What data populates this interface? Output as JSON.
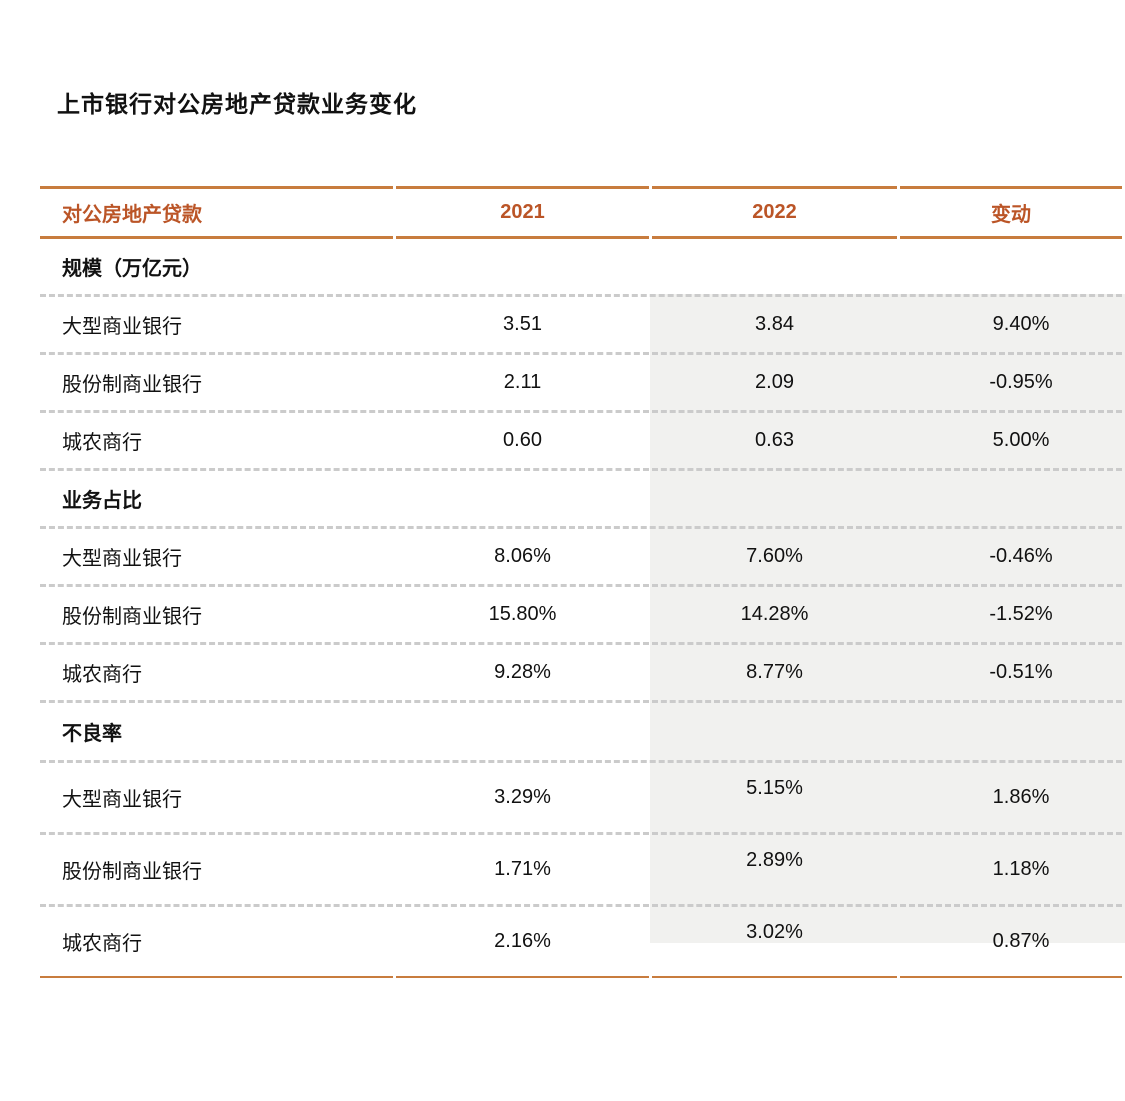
{
  "title": "上市银行对公房地产贷款业务变化",
  "colors": {
    "accent_text": "#bb5527",
    "rule_orange": "#c87c3e",
    "highlight_band": "#f1f1ef",
    "dashed_divider": "#cbcbcb",
    "body_text": "#111111"
  },
  "table": {
    "headers": [
      "对公房地产贷款",
      "2021",
      "2022",
      "变动"
    ],
    "sections": [
      {
        "label": "规模（万亿元）",
        "rows": [
          {
            "label": "大型商业银行",
            "values": [
              "3.51",
              "3.84",
              "9.40%"
            ]
          },
          {
            "label": "股份制商业银行",
            "values": [
              "2.11",
              "2.09",
              "-0.95%"
            ]
          },
          {
            "label": "城农商行",
            "values": [
              "0.60",
              "0.63",
              "5.00%"
            ]
          }
        ]
      },
      {
        "label": "业务占比",
        "rows": [
          {
            "label": "大型商业银行",
            "values": [
              "8.06%",
              "7.60%",
              "-0.46%"
            ]
          },
          {
            "label": "股份制商业银行",
            "values": [
              "15.80%",
              "14.28%",
              "-1.52%"
            ]
          },
          {
            "label": "城农商行",
            "values": [
              "9.28%",
              "8.77%",
              "-0.51%"
            ]
          }
        ]
      },
      {
        "label": "不良率",
        "rows": [
          {
            "label": "大型商业银行",
            "values": [
              "3.29%",
              "5.15%",
              "1.86%"
            ]
          },
          {
            "label": "股份制商业银行",
            "values": [
              "1.71%",
              "2.89%",
              "1.18%"
            ]
          },
          {
            "label": "城农商行",
            "values": [
              "2.16%",
              "3.02%",
              "0.87%"
            ]
          }
        ]
      }
    ]
  },
  "chart_data": {
    "type": "table",
    "title": "上市银行对公房地产贷款业务变化",
    "columns": [
      "对公房地产贷款",
      "2021",
      "2022",
      "变动"
    ],
    "rows": [
      [
        "规模（万亿元）",
        "",
        "",
        ""
      ],
      [
        "大型商业银行",
        "3.51",
        "3.84",
        "9.40%"
      ],
      [
        "股份制商业银行",
        "2.11",
        "2.09",
        "-0.95%"
      ],
      [
        "城农商行",
        "0.60",
        "0.63",
        "5.00%"
      ],
      [
        "业务占比",
        "",
        "",
        ""
      ],
      [
        "大型商业银行",
        "8.06%",
        "7.60%",
        "-0.46%"
      ],
      [
        "股份制商业银行",
        "15.80%",
        "14.28%",
        "-1.52%"
      ],
      [
        "城农商行",
        "9.28%",
        "8.77%",
        "-0.51%"
      ],
      [
        "不良率",
        "",
        "",
        ""
      ],
      [
        "大型商业银行",
        "3.29%",
        "5.15%",
        "1.86%"
      ],
      [
        "股份制商业银行",
        "1.71%",
        "2.89%",
        "1.18%"
      ],
      [
        "城农商行",
        "2.16%",
        "3.02%",
        "0.87%"
      ]
    ],
    "layout": {
      "highlighted_columns": [
        "2022",
        "变动"
      ],
      "row_dividers": "dashed",
      "header_rules": "solid-orange"
    }
  }
}
